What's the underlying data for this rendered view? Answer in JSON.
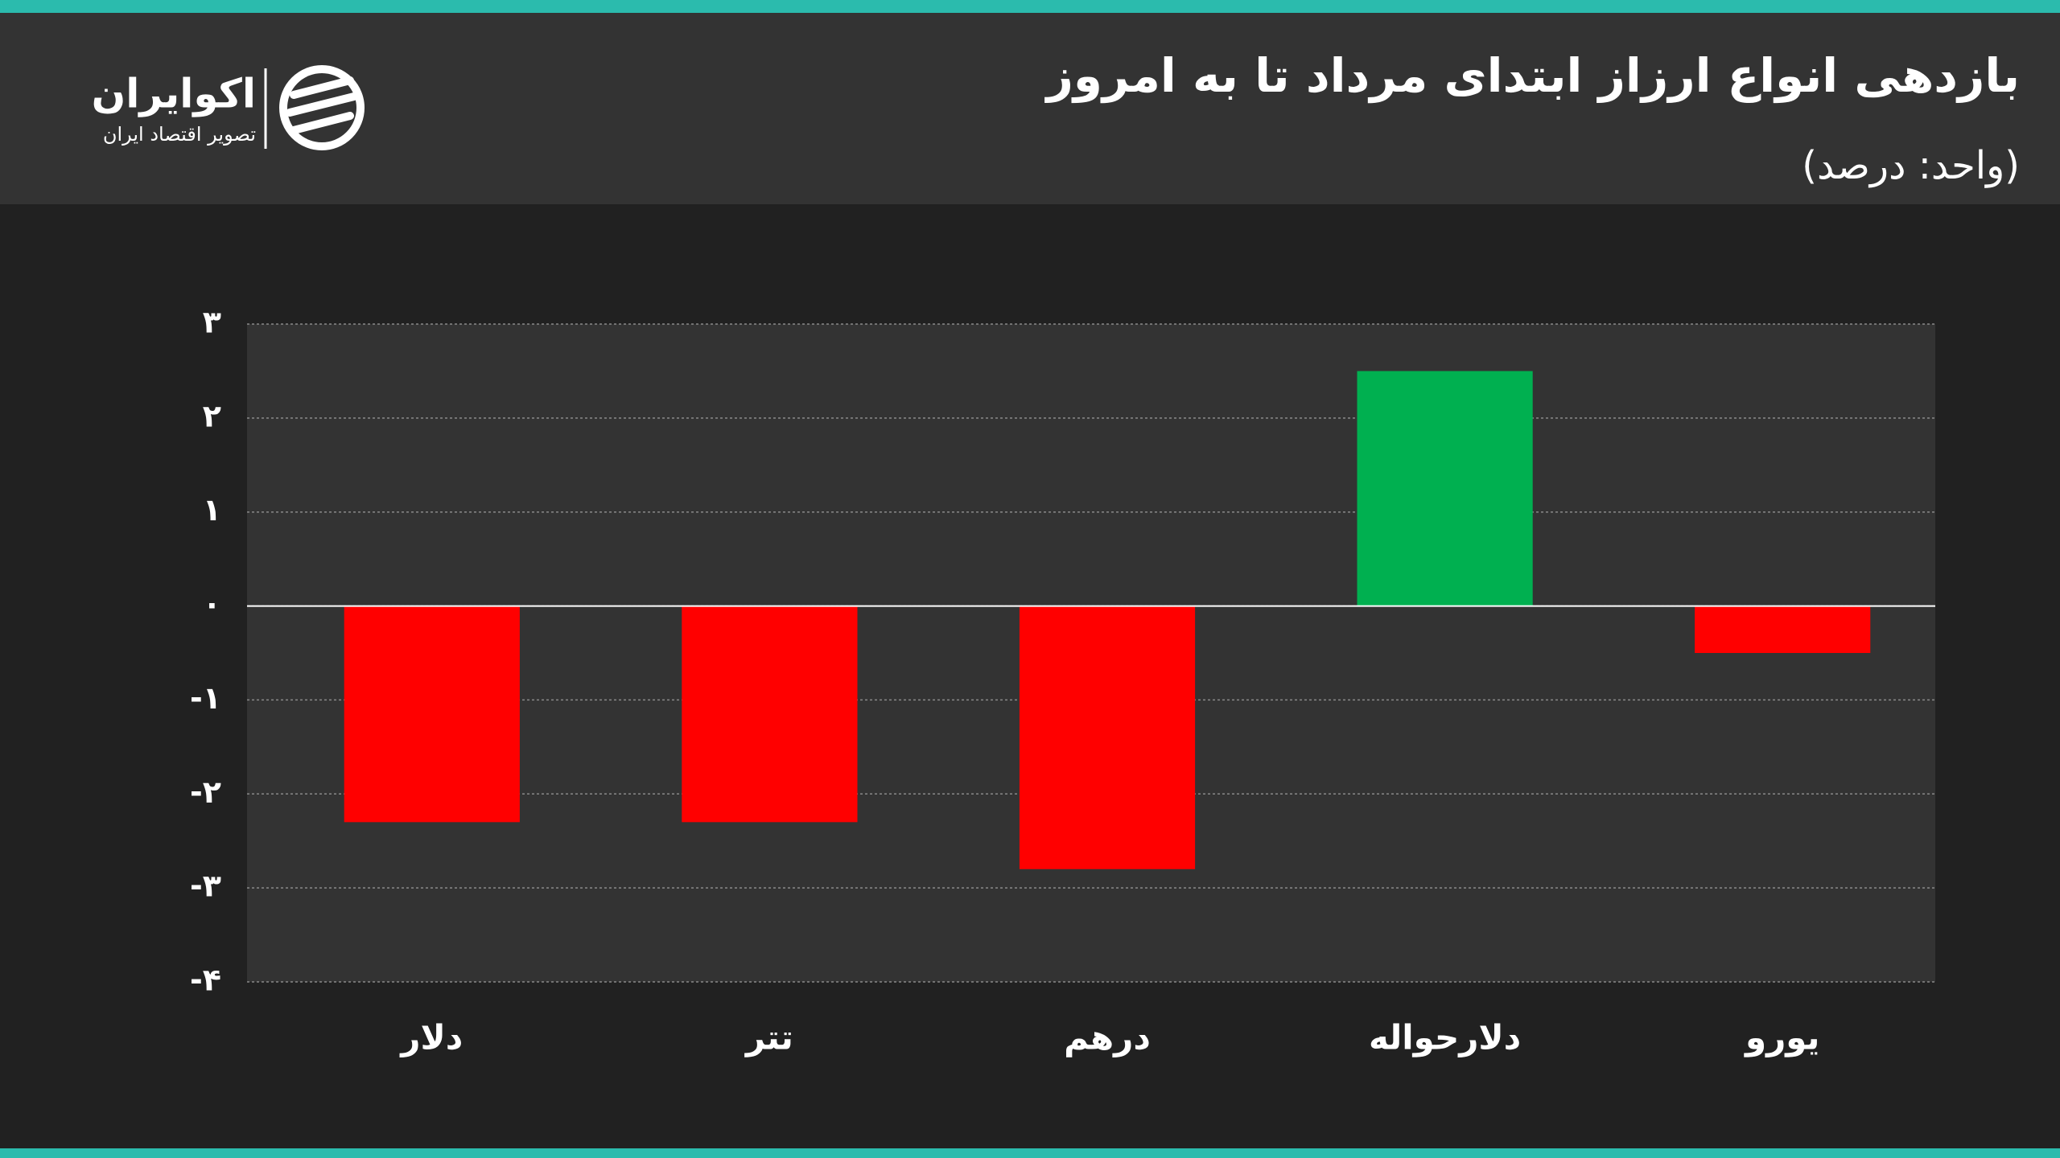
{
  "logo": {
    "name": "اکوایران",
    "tagline": "تصویر اقتصاد ایران"
  },
  "chart_data": {
    "type": "bar",
    "title": "بازدهی انواع ارزاز ابتدای مرداد تا به امروز",
    "subtitle": "(واحد: درصد)",
    "categories": [
      "دلار",
      "تتر",
      "درهم",
      "دلارحواله",
      "یورو"
    ],
    "values": [
      -2.3,
      -2.3,
      -2.8,
      2.5,
      -0.5
    ],
    "colors": [
      "#ff0000",
      "#ff0000",
      "#ff0000",
      "#00b050",
      "#ff0000"
    ],
    "ylim": [
      -4,
      3
    ],
    "yticks": [
      {
        "value": -4,
        "label": "-۴"
      },
      {
        "value": -3,
        "label": "-۳"
      },
      {
        "value": -2,
        "label": "-۲"
      },
      {
        "value": -1,
        "label": "-۱"
      },
      {
        "value": 0,
        "label": "۰"
      },
      {
        "value": 1,
        "label": "۱"
      },
      {
        "value": 2,
        "label": "۲"
      },
      {
        "value": 3,
        "label": "۳"
      }
    ],
    "grid": true
  }
}
